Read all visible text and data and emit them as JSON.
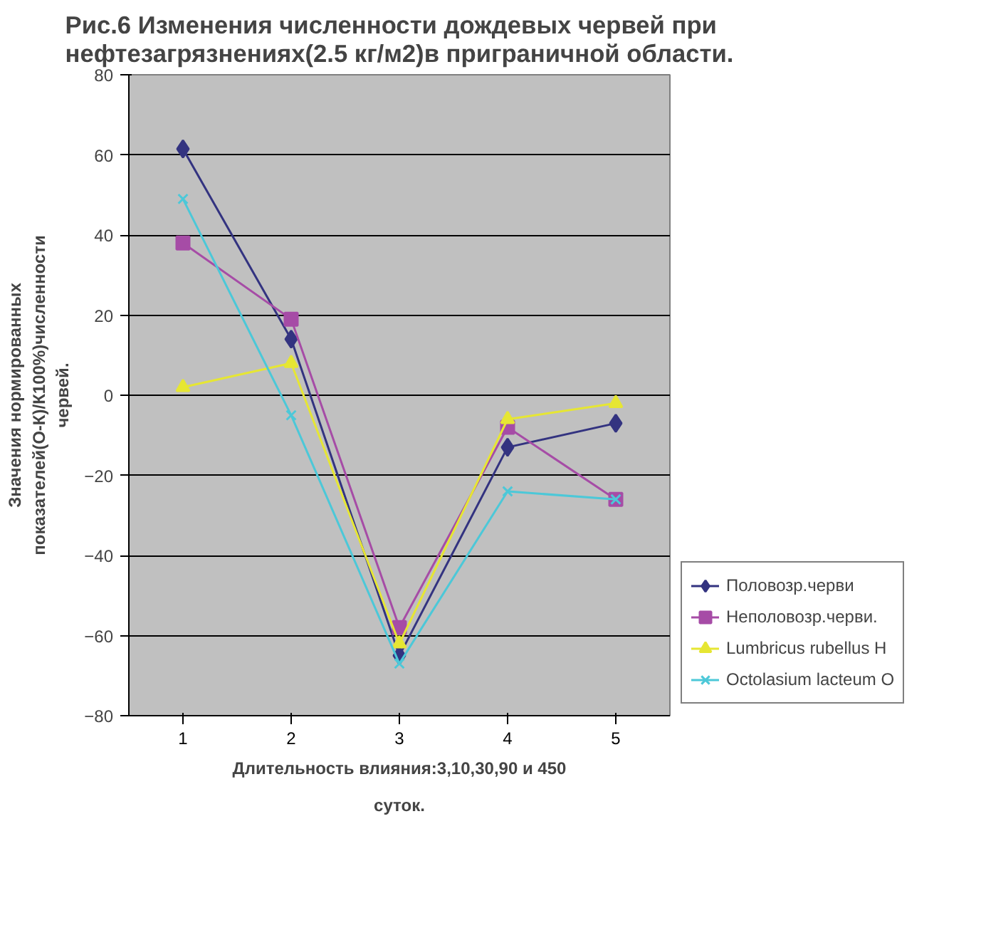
{
  "chart_data": {
    "type": "line",
    "title": "Рис.6 Изменения численности дождевых червей при нефтезагрязнениях(2.5 кг/м2)в приграничной области.",
    "xlabel": "Длительность влияния:3,10,30,90 и 450 суток.",
    "ylabel": "Значения нормированных показателей(О-К)/К100%)численности червей.",
    "categories": [
      "1",
      "2",
      "3",
      "4",
      "5"
    ],
    "series": [
      {
        "name": "Половозр.черви",
        "color": "#333380",
        "marker": "diamond",
        "values": [
          61.5,
          14,
          -65,
          -13,
          -7
        ]
      },
      {
        "name": "Неполовозр.черви.",
        "color": "#a64ca6",
        "marker": "square",
        "values": [
          38,
          19,
          -58,
          -8,
          -26
        ]
      },
      {
        "name": "Lumbricus rubellus H",
        "color": "#e6e633",
        "marker": "triangle",
        "values": [
          2,
          8,
          -62,
          -6,
          -2
        ]
      },
      {
        "name": "Octolasium lacteum O",
        "color": "#4cc8d8",
        "marker": "cross",
        "values": [
          49,
          -5,
          -67,
          -24,
          -26
        ]
      }
    ],
    "ylim": [
      -80,
      80
    ],
    "yticks": [
      -80,
      -60,
      -40,
      -20,
      0,
      20,
      40,
      60,
      80
    ],
    "grid": "y",
    "legend": "right"
  }
}
